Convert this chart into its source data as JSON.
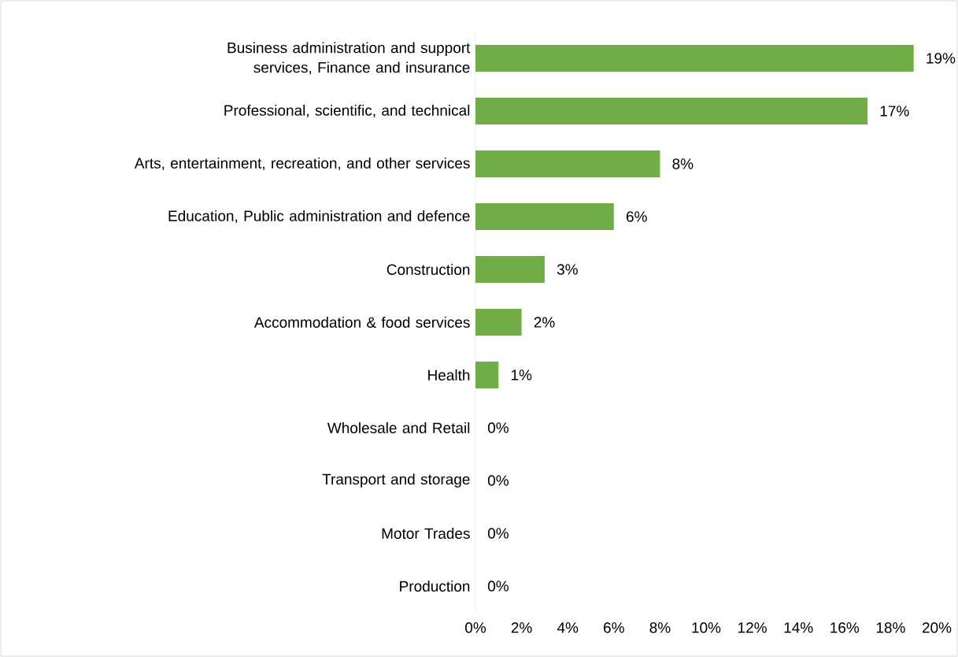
{
  "chart_data": {
    "type": "bar",
    "orientation": "horizontal",
    "categories": [
      "Business administration and support services, Finance and insurance",
      "Professional, scientific, and technical",
      "Arts, entertainment, recreation, and other services",
      "Education, Public administration and defence",
      "Construction",
      "Accommodation & food services",
      "Health",
      "Wholesale and Retail",
      "Transport and storage",
      "Motor Trades",
      "Production"
    ],
    "values": [
      19,
      17,
      8,
      6,
      3,
      2,
      1,
      0,
      0,
      0,
      0
    ],
    "value_labels": [
      "19%",
      "17%",
      "8%",
      "6%",
      "3%",
      "2%",
      "1%",
      "0%",
      "0%",
      "0%",
      "0%"
    ],
    "color": "#70ad47",
    "xlim": [
      0,
      20
    ],
    "xticks": [
      {
        "value": 0,
        "label": "0%"
      },
      {
        "value": 2,
        "label": "2%"
      },
      {
        "value": 4,
        "label": "4%"
      },
      {
        "value": 6,
        "label": "6%"
      },
      {
        "value": 8,
        "label": "8%"
      },
      {
        "value": 10,
        "label": "10%"
      },
      {
        "value": 12,
        "label": "12%"
      },
      {
        "value": 14,
        "label": "14%"
      },
      {
        "value": 16,
        "label": "16%"
      },
      {
        "value": 18,
        "label": "18%"
      },
      {
        "value": 20,
        "label": "20%"
      }
    ],
    "grid": false
  }
}
